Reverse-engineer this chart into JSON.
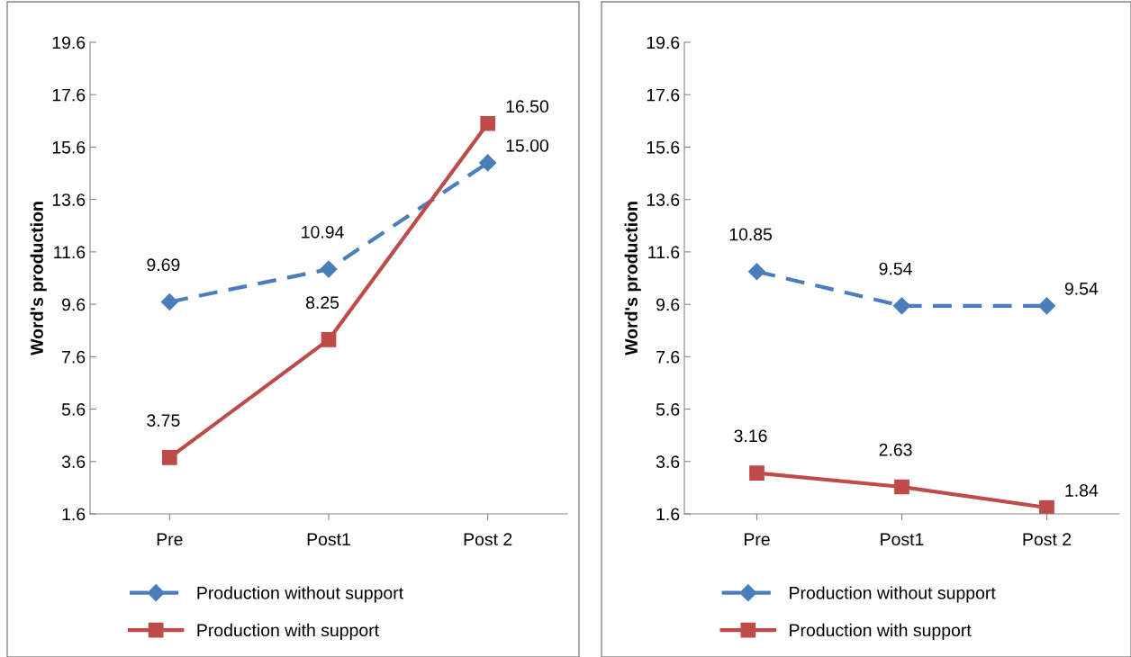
{
  "chart_data": [
    {
      "type": "line",
      "ylabel": "Word's production",
      "categories": [
        "Pre",
        "Post1",
        "Post 2"
      ],
      "ylim": [
        1.6,
        19.6
      ],
      "yticks": [
        1.6,
        3.6,
        5.6,
        7.6,
        9.6,
        11.6,
        13.6,
        15.6,
        17.6,
        19.6
      ],
      "grid": false,
      "legend": "bottom",
      "series": [
        {
          "name": "Production without support",
          "color": "#4a7ebb",
          "values": [
            9.69,
            10.94,
            15.0
          ],
          "value_labels": [
            "9.69",
            "10.94",
            "15.00"
          ],
          "marker": "diamond",
          "line_style": "dashed"
        },
        {
          "name": "Production with support",
          "color": "#be4b48",
          "values": [
            3.75,
            8.25,
            16.5
          ],
          "value_labels": [
            "3.75",
            "8.25",
            "16.50"
          ],
          "marker": "square",
          "line_style": "solid"
        }
      ]
    },
    {
      "type": "line",
      "ylabel": "Word's production",
      "categories": [
        "Pre",
        "Post1",
        "Post 2"
      ],
      "ylim": [
        1.6,
        19.6
      ],
      "yticks": [
        1.6,
        3.6,
        5.6,
        7.6,
        9.6,
        11.6,
        13.6,
        15.6,
        17.6,
        19.6
      ],
      "grid": false,
      "legend": "bottom",
      "series": [
        {
          "name": "Production without support",
          "color": "#4a7ebb",
          "values": [
            10.85,
            9.54,
            9.54
          ],
          "value_labels": [
            "10.85",
            "9.54",
            "9.54"
          ],
          "marker": "diamond",
          "line_style": "dashed"
        },
        {
          "name": "Production with support",
          "color": "#be4b48",
          "values": [
            3.16,
            2.63,
            1.84
          ],
          "value_labels": [
            "3.16",
            "2.63",
            "1.84"
          ],
          "marker": "square",
          "line_style": "solid"
        }
      ]
    }
  ]
}
